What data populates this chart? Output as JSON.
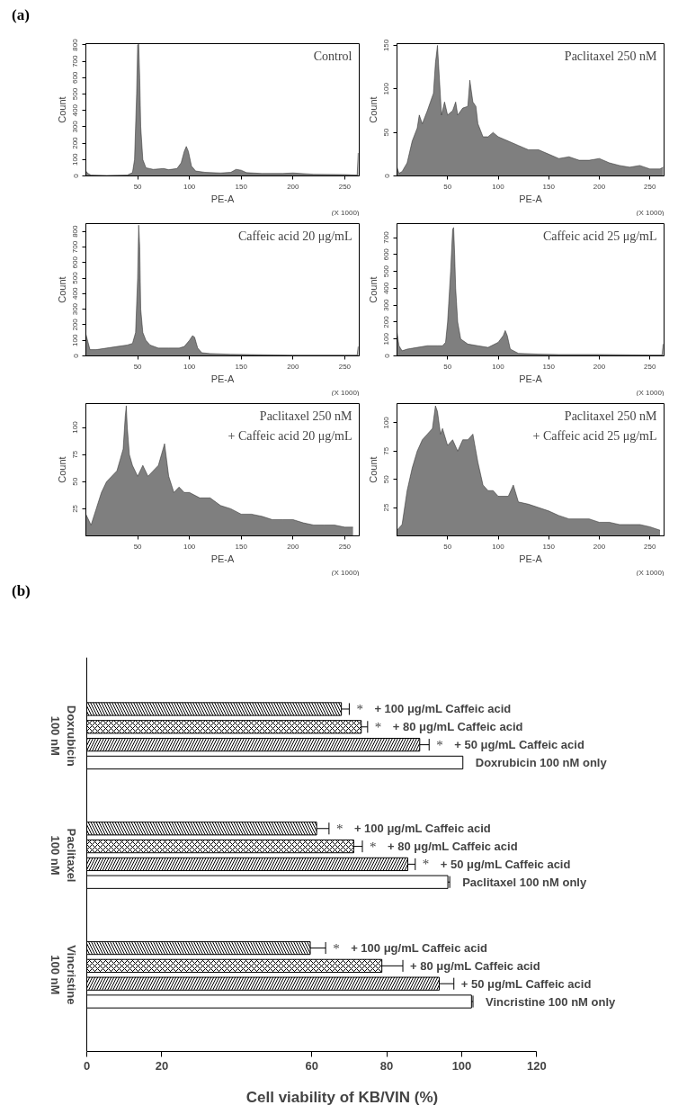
{
  "chart_data": [
    {
      "type": "area",
      "title": "Control",
      "xlabel": "PE-A",
      "ylabel": "Count",
      "annotations": [
        "(a)",
        "(X 1000)"
      ],
      "color": "#7f7f7f",
      "xlim": [
        0,
        264
      ],
      "ylim": [
        0,
        808
      ],
      "xticks": [
        50,
        100,
        150,
        200,
        250
      ],
      "yticks": [
        0,
        100,
        200,
        300,
        400,
        500,
        600,
        700,
        800
      ],
      "x": [
        0,
        2,
        5,
        20,
        40,
        45,
        47,
        49,
        50,
        51,
        52,
        53,
        55,
        58,
        65,
        75,
        80,
        88,
        92,
        95,
        97,
        99,
        102,
        106,
        115,
        130,
        140,
        145,
        150,
        155,
        170,
        190,
        200,
        220,
        250,
        262,
        263
      ],
      "values": [
        30,
        15,
        5,
        3,
        5,
        20,
        100,
        500,
        800,
        805,
        600,
        300,
        100,
        50,
        40,
        45,
        38,
        45,
        80,
        150,
        180,
        150,
        60,
        30,
        22,
        18,
        22,
        40,
        35,
        20,
        15,
        15,
        18,
        10,
        8,
        5,
        140
      ]
    },
    {
      "type": "area",
      "title": "Paclitaxel 250 nM",
      "xlabel": "PE-A",
      "ylabel": "Count",
      "annotations": [
        "(X 1000)"
      ],
      "color": "#7f7f7f",
      "xlim": [
        0,
        264
      ],
      "ylim": [
        0,
        152
      ],
      "xticks": [
        50,
        100,
        150,
        200,
        250
      ],
      "yticks": [
        0,
        50,
        100,
        150
      ],
      "x": [
        0,
        2,
        5,
        10,
        15,
        20,
        22,
        25,
        30,
        33,
        36,
        38,
        40,
        42,
        44,
        47,
        50,
        55,
        58,
        60,
        65,
        70,
        72,
        75,
        78,
        80,
        85,
        90,
        95,
        100,
        110,
        120,
        130,
        140,
        150,
        160,
        170,
        180,
        190,
        200,
        210,
        220,
        230,
        240,
        250,
        260,
        263
      ],
      "values": [
        10,
        3,
        5,
        15,
        40,
        55,
        70,
        60,
        75,
        85,
        95,
        130,
        150,
        110,
        70,
        85,
        70,
        75,
        85,
        70,
        78,
        80,
        110,
        85,
        80,
        60,
        45,
        45,
        50,
        45,
        40,
        35,
        30,
        30,
        25,
        20,
        22,
        18,
        18,
        20,
        15,
        12,
        10,
        12,
        8,
        8,
        10
      ]
    },
    {
      "type": "area",
      "title": "Caffeic acid 20 μg/mL",
      "xlabel": "PE-A",
      "ylabel": "Count",
      "annotations": [
        "(X 1000)"
      ],
      "color": "#7f7f7f",
      "xlim": [
        0,
        264
      ],
      "ylim": [
        0,
        850
      ],
      "xticks": [
        50,
        100,
        150,
        200,
        250
      ],
      "yticks": [
        0,
        100,
        200,
        300,
        400,
        500,
        600,
        700,
        800
      ],
      "x": [
        0,
        2,
        4,
        10,
        20,
        30,
        40,
        45,
        48,
        50,
        51,
        52,
        53,
        55,
        58,
        62,
        70,
        80,
        90,
        95,
        100,
        103,
        105,
        108,
        112,
        120,
        140,
        160,
        200,
        250,
        262,
        263
      ],
      "values": [
        140,
        90,
        40,
        40,
        50,
        60,
        70,
        80,
        150,
        500,
        840,
        700,
        300,
        150,
        100,
        70,
        50,
        50,
        50,
        60,
        100,
        130,
        120,
        50,
        20,
        15,
        10,
        8,
        5,
        5,
        5,
        60
      ]
    },
    {
      "type": "area",
      "title": "Caffeic acid 25 μg/mL",
      "xlabel": "PE-A",
      "ylabel": "Count",
      "annotations": [
        "(X 1000)"
      ],
      "color": "#7f7f7f",
      "xlim": [
        0,
        264
      ],
      "ylim": [
        0,
        783
      ],
      "xticks": [
        50,
        100,
        150,
        200,
        250
      ],
      "yticks": [
        0,
        100,
        200,
        300,
        400,
        500,
        600,
        700
      ],
      "x": [
        0,
        2,
        5,
        10,
        20,
        30,
        40,
        45,
        48,
        50,
        53,
        55,
        56,
        57,
        58,
        60,
        63,
        70,
        80,
        90,
        100,
        105,
        107,
        109,
        112,
        120,
        140,
        160,
        200,
        250,
        262,
        263
      ],
      "values": [
        140,
        60,
        30,
        40,
        50,
        60,
        60,
        60,
        80,
        200,
        500,
        750,
        760,
        600,
        400,
        200,
        100,
        70,
        60,
        50,
        80,
        120,
        150,
        120,
        40,
        15,
        10,
        8,
        8,
        5,
        5,
        70
      ]
    },
    {
      "type": "area",
      "title": "Paclitaxel 250 nM",
      "subtitle": "+ Caffeic acid 20 μg/mL",
      "xlabel": "PE-A",
      "ylabel": "Count",
      "annotations": [
        "(X 1000)"
      ],
      "color": "#7f7f7f",
      "xlim": [
        0,
        264
      ],
      "ylim": [
        0,
        122
      ],
      "xticks": [
        50,
        100,
        150,
        200,
        250
      ],
      "yticks": [
        25,
        50,
        75,
        100
      ],
      "x": [
        0,
        5,
        10,
        15,
        20,
        25,
        30,
        33,
        36,
        38,
        39,
        40,
        42,
        45,
        50,
        55,
        60,
        65,
        70,
        73,
        76,
        78,
        80,
        85,
        90,
        95,
        100,
        110,
        120,
        130,
        140,
        150,
        160,
        170,
        180,
        190,
        200,
        210,
        220,
        230,
        240,
        250,
        258
      ],
      "values": [
        20,
        10,
        25,
        40,
        50,
        55,
        60,
        70,
        80,
        110,
        120,
        100,
        75,
        65,
        55,
        65,
        55,
        60,
        65,
        75,
        85,
        70,
        55,
        40,
        45,
        40,
        40,
        35,
        35,
        28,
        25,
        20,
        20,
        18,
        15,
        15,
        15,
        12,
        10,
        10,
        10,
        8,
        8
      ]
    },
    {
      "type": "area",
      "title": "Paclitaxel 250 nM",
      "subtitle": "+ Caffeic acid 25 μg/mL",
      "xlabel": "PE-A",
      "ylabel": "Count",
      "annotations": [
        "(X 1000)"
      ],
      "color": "#7f7f7f",
      "xlim": [
        0,
        264
      ],
      "ylim": [
        0,
        117
      ],
      "xticks": [
        50,
        100,
        150,
        200,
        250
      ],
      "yticks": [
        25,
        50,
        75,
        100
      ],
      "x": [
        0,
        5,
        10,
        15,
        20,
        25,
        30,
        35,
        38,
        40,
        43,
        45,
        50,
        55,
        60,
        65,
        70,
        75,
        78,
        80,
        85,
        90,
        95,
        100,
        110,
        115,
        120,
        130,
        140,
        150,
        160,
        170,
        180,
        190,
        200,
        210,
        220,
        230,
        240,
        250,
        260
      ],
      "values": [
        5,
        10,
        40,
        60,
        75,
        85,
        90,
        95,
        115,
        110,
        90,
        95,
        80,
        85,
        75,
        85,
        85,
        90,
        75,
        65,
        45,
        40,
        40,
        35,
        35,
        45,
        30,
        28,
        25,
        22,
        18,
        15,
        15,
        15,
        12,
        12,
        10,
        10,
        10,
        8,
        5
      ]
    },
    {
      "type": "bar",
      "orientation": "horizontal",
      "xlabel": "Cell viability of KB/VIN (%)",
      "annotations": [
        "(b)"
      ],
      "xlim": [
        0,
        120
      ],
      "xticks": [
        0,
        20,
        60,
        80,
        100,
        120
      ],
      "categories": [
        "Doxrubicin 100 nM",
        "Paclitaxel 100 nM",
        "Vincristine 100 nM"
      ],
      "series": [
        {
          "name": "+ 100 μg/mL Caffeic acid",
          "color": "#000000",
          "values": [
            67.9,
            61.3,
            59.6
          ],
          "errors": [
            2.1,
            3.3,
            4.1
          ],
          "value_labels": [
            "*",
            "*",
            "*"
          ]
        },
        {
          "name": "+ 80 μg/mL Caffeic acid",
          "color": "#000000",
          "values": [
            73.2,
            71.2,
            78.7
          ],
          "errors": [
            1.7,
            2.3,
            5.6
          ],
          "value_labels": [
            "*",
            "*",
            null
          ]
        },
        {
          "name": "+ 50 μg/mL Caffeic acid",
          "color": "#000000",
          "values": [
            88.8,
            85.6,
            94.0
          ],
          "errors": [
            2.5,
            2.0,
            3.9
          ],
          "value_labels": [
            "*",
            "*",
            null
          ]
        },
        {
          "color": "#ffffff",
          "values": [
            100.3,
            96.3,
            102.6
          ],
          "errors": [
            null,
            0.5,
            0.4
          ],
          "value_labels": [
            "Doxrubicin 100 nM only",
            "Paclitaxel 100 nM only",
            "Vincristine 100 nM only"
          ]
        }
      ]
    }
  ]
}
